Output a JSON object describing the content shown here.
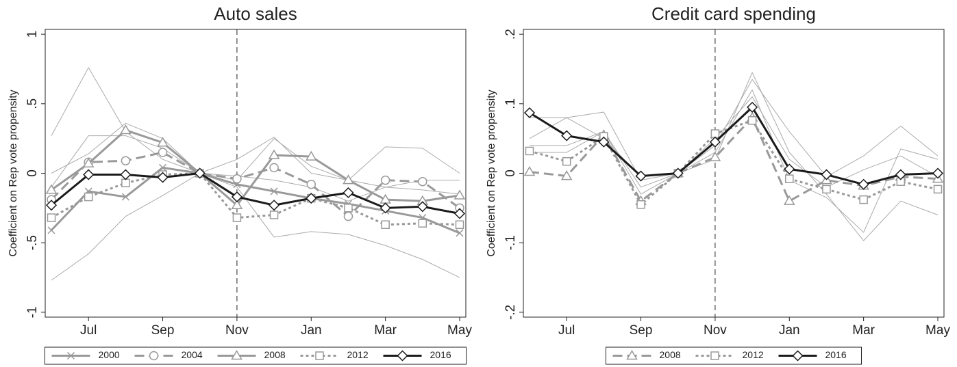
{
  "chart_data": [
    {
      "type": "line",
      "title": "Auto sales",
      "y_label": "Coefficient on Rep vote propensity",
      "categories": [
        null,
        "Jul",
        null,
        "Sep",
        null,
        "Nov",
        null,
        "Jan",
        null,
        "Mar",
        null,
        "May"
      ],
      "vline": "Nov",
      "legend": "bottom",
      "ylim": [
        -1.035,
        1.035
      ],
      "yticks": [
        -1,
        {
          "value": -0.5,
          "label": "-.5"
        },
        0,
        {
          "value": 0.5,
          "label": ".5"
        },
        1
      ],
      "series": [
        {
          "color": "#aaaaaa",
          "width": 1,
          "dash": "solid",
          "values": [
            0.27,
            0.76,
            0.3,
            0.1,
            0,
            -0.05,
            0.25,
            0.05,
            -0.05,
            -0.1,
            -0.12,
            -0.15
          ]
        },
        {
          "color": "#aaaaaa",
          "width": 1,
          "dash": "solid",
          "values": [
            -0.77,
            -0.58,
            -0.31,
            -0.16,
            0,
            -0.1,
            -0.46,
            -0.42,
            -0.44,
            -0.52,
            -0.62,
            -0.75
          ]
        },
        {
          "color": "#aaaaaa",
          "width": 1,
          "dash": "solid",
          "values": [
            -0.1,
            0.27,
            0.27,
            0.18,
            0,
            0.1,
            0.26,
            0.0,
            -0.05,
            0.19,
            0.18,
            0.0
          ]
        },
        {
          "color": "#aaaaaa",
          "width": 1,
          "dash": "solid",
          "values": [
            0.0,
            0.14,
            0.36,
            0.25,
            0,
            -0.02,
            -0.05,
            -0.1,
            -0.2,
            -0.1,
            -0.05,
            -0.05
          ]
        },
        {
          "name": "2000",
          "color": "#999999",
          "width": 3,
          "dash": "solid",
          "marker": "x",
          "values": [
            -0.41,
            -0.13,
            -0.17,
            0.04,
            0,
            -0.08,
            -0.13,
            -0.18,
            -0.22,
            -0.27,
            -0.32,
            -0.43
          ]
        },
        {
          "name": "2004",
          "color": "#999999",
          "width": 3,
          "dash": "dashed",
          "marker": "circle",
          "values": [
            -0.19,
            0.08,
            0.09,
            0.15,
            0,
            -0.04,
            0.04,
            -0.08,
            -0.31,
            -0.05,
            -0.06,
            -0.25
          ]
        },
        {
          "name": "2008",
          "color": "#999999",
          "width": 3,
          "dash": "solid",
          "marker": "triangle",
          "values": [
            -0.12,
            0.07,
            0.31,
            0.22,
            0,
            -0.23,
            0.13,
            0.12,
            -0.05,
            -0.19,
            -0.2,
            -0.16
          ]
        },
        {
          "name": "2012",
          "color": "#999999",
          "width": 3,
          "dash": "dotted",
          "marker": "square",
          "values": [
            -0.32,
            -0.17,
            -0.07,
            -0.01,
            0,
            -0.32,
            -0.3,
            -0.18,
            -0.25,
            -0.37,
            -0.36,
            -0.37
          ]
        },
        {
          "name": "2016",
          "color": "#1a1a1a",
          "width": 3,
          "dash": "solid",
          "marker": "diamond",
          "values": [
            -0.23,
            -0.01,
            -0.01,
            -0.03,
            0,
            -0.17,
            -0.23,
            -0.18,
            -0.14,
            -0.25,
            -0.24,
            -0.29
          ]
        }
      ]
    },
    {
      "type": "line",
      "title": "Credit card spending",
      "y_label": "Coefficient on Rep vote propensity",
      "categories": [
        null,
        "Jul",
        null,
        "Sep",
        null,
        "Nov",
        null,
        "Jan",
        null,
        "Mar",
        null,
        "May"
      ],
      "vline": "Nov",
      "legend": "bottom",
      "ylim": [
        -0.207,
        0.207
      ],
      "yticks": [
        {
          "value": -0.2,
          "label": "-.2"
        },
        {
          "value": -0.1,
          "label": "-.1"
        },
        0,
        {
          "value": 0.1,
          "label": ".1"
        },
        {
          "value": 0.2,
          "label": ".2"
        }
      ],
      "series": [
        {
          "color": "#aaaaaa",
          "width": 1,
          "dash": "solid",
          "values": [
            0.05,
            0.08,
            0.088,
            -0.01,
            0,
            0.02,
            0.145,
            0.03,
            -0.03,
            -0.097,
            -0.04,
            -0.06
          ]
        },
        {
          "color": "#aaaaaa",
          "width": 1,
          "dash": "solid",
          "values": [
            0.04,
            0.04,
            0.06,
            -0.02,
            0,
            0.04,
            0.135,
            0.06,
            -0.005,
            0.025,
            0.068,
            0.025
          ]
        },
        {
          "color": "#aaaaaa",
          "width": 1,
          "dash": "solid",
          "values": [
            0.08,
            0.08,
            0.05,
            -0.005,
            0,
            0.03,
            0.12,
            -0.01,
            -0.035,
            -0.085,
            0.035,
            0.02
          ]
        },
        {
          "color": "#aaaaaa",
          "width": 1,
          "dash": "solid",
          "values": [
            0.03,
            0.03,
            0.06,
            -0.03,
            0,
            0.05,
            0.11,
            0.02,
            -0.02,
            0.005,
            0.025,
            -0.005
          ]
        },
        {
          "name": "2008",
          "color": "#999999",
          "width": 3,
          "dash": "dashed",
          "marker": "triangle",
          "values": [
            0.002,
            -0.004,
            0.055,
            -0.04,
            0,
            0.023,
            0.08,
            -0.04,
            -0.01,
            -0.018,
            -0.005,
            -0.008
          ]
        },
        {
          "name": "2012",
          "color": "#999999",
          "width": 3,
          "dash": "dotted",
          "marker": "square",
          "values": [
            0.032,
            0.017,
            0.053,
            -0.045,
            0,
            0.057,
            0.076,
            -0.008,
            -0.023,
            -0.038,
            -0.012,
            -0.023
          ]
        },
        {
          "name": "2016",
          "color": "#1a1a1a",
          "width": 3,
          "dash": "solid",
          "marker": "diamond",
          "values": [
            0.087,
            0.054,
            0.045,
            -0.004,
            0,
            0.045,
            0.095,
            0.006,
            -0.002,
            -0.016,
            -0.002,
            0.0
          ]
        }
      ]
    }
  ]
}
